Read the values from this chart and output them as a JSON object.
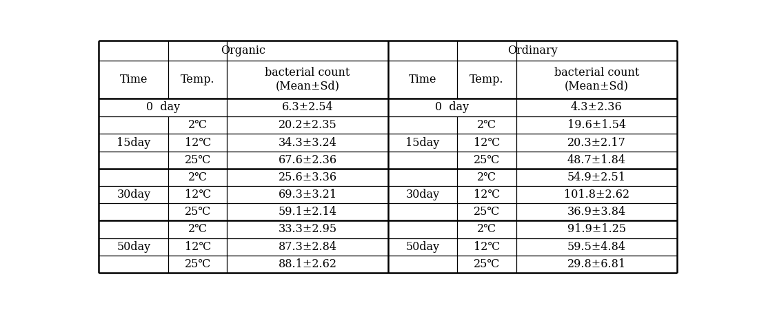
{
  "organic_header": "Organic",
  "ordinary_header": "Ordinary",
  "col_headers": [
    "Time",
    "Temp.",
    "bacterial count\n(Mean±Sd)",
    "Time",
    "Temp.",
    "bacterial count\n(Mean±Sd)"
  ],
  "groups": [
    {
      "org_time": "0 day",
      "ord_time": "0 day",
      "org_val": "6.3±2.54",
      "ord_val": "4.3±2.36",
      "type": "day0"
    },
    {
      "org_time": "15day",
      "ord_time": "15day",
      "sub_rows": [
        {
          "org_temp": "2℃",
          "org_val": "20.2±2.35",
          "ord_temp": "2℃",
          "ord_val": "19.6±1.54"
        },
        {
          "org_temp": "12℃",
          "org_val": "34.3±3.24",
          "ord_temp": "12℃",
          "ord_val": "20.3±2.17"
        },
        {
          "org_temp": "25℃",
          "org_val": "67.6±2.36",
          "ord_temp": "25℃",
          "ord_val": "48.7±1.84"
        }
      ],
      "type": "group"
    },
    {
      "org_time": "30day",
      "ord_time": "30day",
      "sub_rows": [
        {
          "org_temp": "2℃",
          "org_val": "25.6±3.36",
          "ord_temp": "2℃",
          "ord_val": "54.9±2.51"
        },
        {
          "org_temp": "12℃",
          "org_val": "69.3±3.21",
          "ord_temp": "12℃",
          "ord_val": "101.8±2.62"
        },
        {
          "org_temp": "25℃",
          "org_val": "59.1±2.14",
          "ord_temp": "25℃",
          "ord_val": "36.9±3.84"
        }
      ],
      "type": "group"
    },
    {
      "org_time": "50day",
      "ord_time": "50day",
      "sub_rows": [
        {
          "org_temp": "2℃",
          "org_val": "33.3±2.95",
          "ord_temp": "2℃",
          "ord_val": "91.9±1.25"
        },
        {
          "org_temp": "12℃",
          "org_val": "87.3±2.84",
          "ord_temp": "12℃",
          "ord_val": "59.5±4.84"
        },
        {
          "org_temp": "25℃",
          "org_val": "88.1±2.62",
          "ord_temp": "25℃",
          "ord_val": "29.8±6.81"
        }
      ],
      "type": "group"
    }
  ],
  "bg_color": "#ffffff",
  "font_size": 11.5,
  "lw_outer": 1.8,
  "lw_inner": 0.9,
  "lw_subheader": 1.8
}
